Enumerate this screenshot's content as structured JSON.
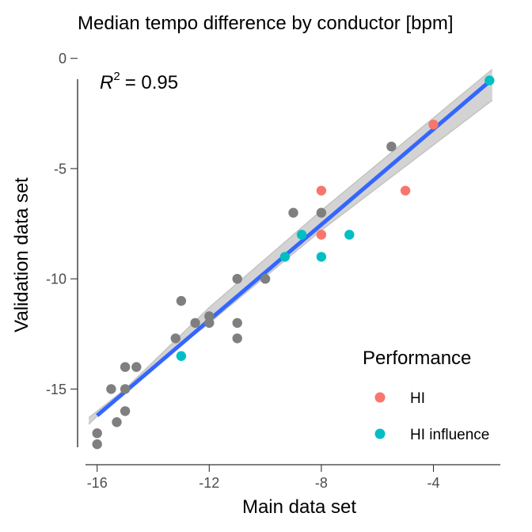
{
  "chart_data": {
    "type": "scatter",
    "title": "Median tempo difference by conductor [bpm]",
    "xlabel": "Main data set",
    "ylabel": "Validation data set",
    "xlim": [
      -16.3,
      -1.9
    ],
    "ylim": [
      -17.7,
      0
    ],
    "xticks": [
      -16,
      -12,
      -8,
      -4
    ],
    "yticks": [
      0,
      -5,
      -10,
      -15
    ],
    "grid": false,
    "annotation": {
      "r_label": "R",
      "r_sup": "2",
      "r_value": "= 0.95"
    },
    "legend": {
      "title": "Performance",
      "position": "bottom-right",
      "entries": [
        {
          "label": "HI",
          "color": "#F8766D"
        },
        {
          "label": "HI influence",
          "color": "#00BFC4"
        }
      ]
    },
    "series": [
      {
        "name": "",
        "color": "#7f7f7f",
        "points": [
          [
            -16,
            -17
          ],
          [
            -16,
            -17.5
          ],
          [
            -15.5,
            -15
          ],
          [
            -15.3,
            -16.5
          ],
          [
            -15,
            -16
          ],
          [
            -15,
            -15
          ],
          [
            -15,
            -14
          ],
          [
            -14.6,
            -14
          ],
          [
            -13.2,
            -12.7
          ],
          [
            -13,
            -11
          ],
          [
            -12.5,
            -12
          ],
          [
            -12,
            -12
          ],
          [
            -12,
            -11.7
          ],
          [
            -11,
            -10
          ],
          [
            -11,
            -12
          ],
          [
            -11,
            -12.7
          ],
          [
            -10,
            -10
          ],
          [
            -9,
            -7
          ],
          [
            -8,
            -7
          ],
          [
            -5.5,
            -4
          ]
        ]
      },
      {
        "name": "HI",
        "color": "#F8766D",
        "points": [
          [
            -8,
            -6
          ],
          [
            -8,
            -8
          ],
          [
            -5,
            -6
          ],
          [
            -4,
            -3
          ]
        ]
      },
      {
        "name": "HI influence",
        "color": "#00BFC4",
        "points": [
          [
            -13,
            -13.5
          ],
          [
            -9.3,
            -9
          ],
          [
            -8.7,
            -8
          ],
          [
            -8,
            -9
          ],
          [
            -7,
            -8
          ],
          [
            -2,
            -1
          ]
        ]
      }
    ],
    "fit": {
      "color": "#3366FF",
      "band_color": "#d3d3d3",
      "band_edge_color": "#c4c4c4",
      "line": [
        [
          -16,
          -16.2
        ],
        [
          -2,
          -1.05
        ]
      ],
      "band_lower": [
        [
          -16.3,
          -16.3
        ],
        [
          -12,
          -12
        ],
        [
          -8,
          -7.8
        ],
        [
          -1.9,
          -1.9
        ]
      ],
      "band_upper": [
        [
          -16.3,
          -16.6
        ],
        [
          -12,
          -11.3
        ],
        [
          -8,
          -6.9
        ],
        [
          -1.9,
          -0.5
        ]
      ]
    }
  }
}
